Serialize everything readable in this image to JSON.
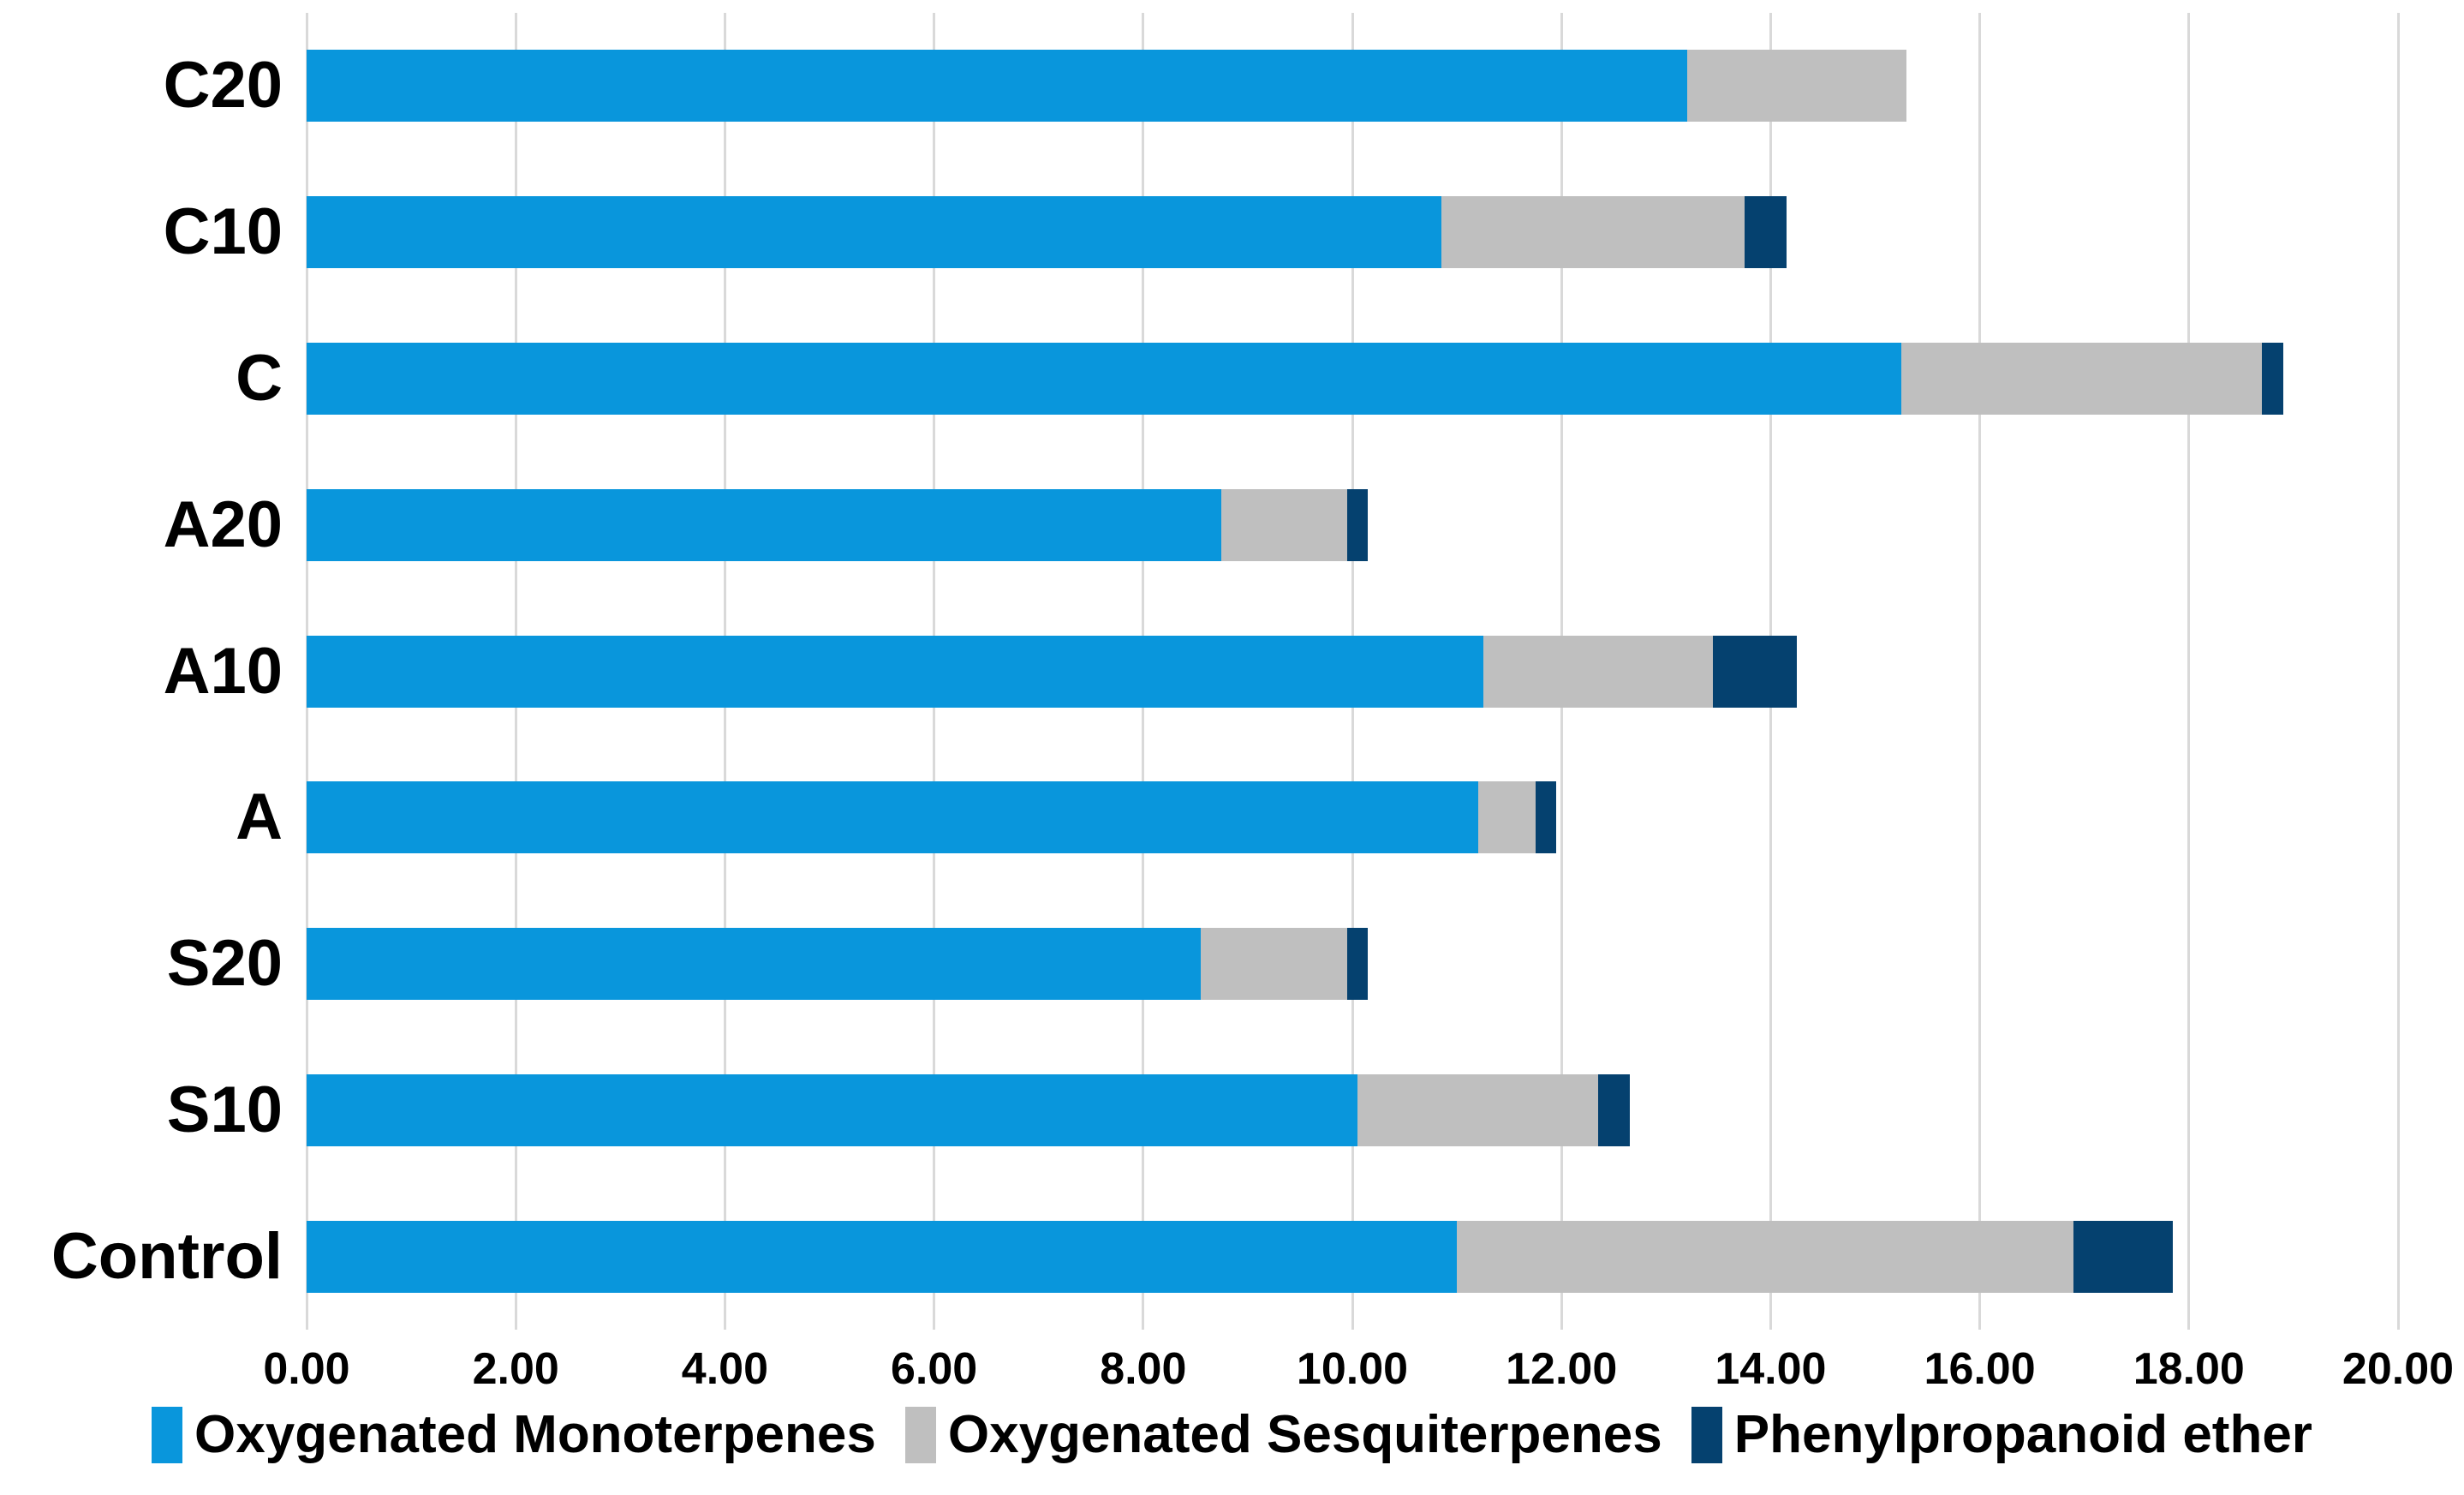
{
  "chart_data": {
    "type": "bar",
    "orientation": "horizontal",
    "stacked": true,
    "title": "",
    "xlabel": "",
    "ylabel": "",
    "categories": [
      "C20",
      "C10",
      "C",
      "A20",
      "A10",
      "A",
      "S20",
      "S10",
      "Control"
    ],
    "series": [
      {
        "name": "Oxygenated Monoterpenes",
        "color": "#0996dc",
        "values": [
          13.2,
          10.85,
          15.25,
          8.75,
          11.25,
          11.2,
          8.55,
          10.05,
          11.0
        ]
      },
      {
        "name": "Oxygenated Sesquiterpenes",
        "color": "#bfbfbf",
        "values": [
          2.1,
          2.9,
          3.45,
          1.2,
          2.2,
          0.55,
          1.4,
          2.3,
          5.9
        ]
      },
      {
        "name": "Phenylpropanoid ether",
        "color": "#05416f",
        "values": [
          0,
          0.4,
          0.2,
          0.2,
          0.8,
          0.2,
          0.2,
          0.3,
          0.95
        ]
      }
    ],
    "stack_totals": [
      15.3,
      14.15,
      18.9,
      10.15,
      14.25,
      11.95,
      10.15,
      12.65,
      17.85
    ],
    "xlim": [
      0,
      20
    ],
    "xtick_labels": [
      "0.00",
      "2.00",
      "4.00",
      "6.00",
      "8.00",
      "10.00",
      "12.00",
      "14.00",
      "16.00",
      "18.00",
      "20.00"
    ],
    "grid": "vertical",
    "gridline_color": "#d9d9d9",
    "legend_position": "bottom"
  }
}
